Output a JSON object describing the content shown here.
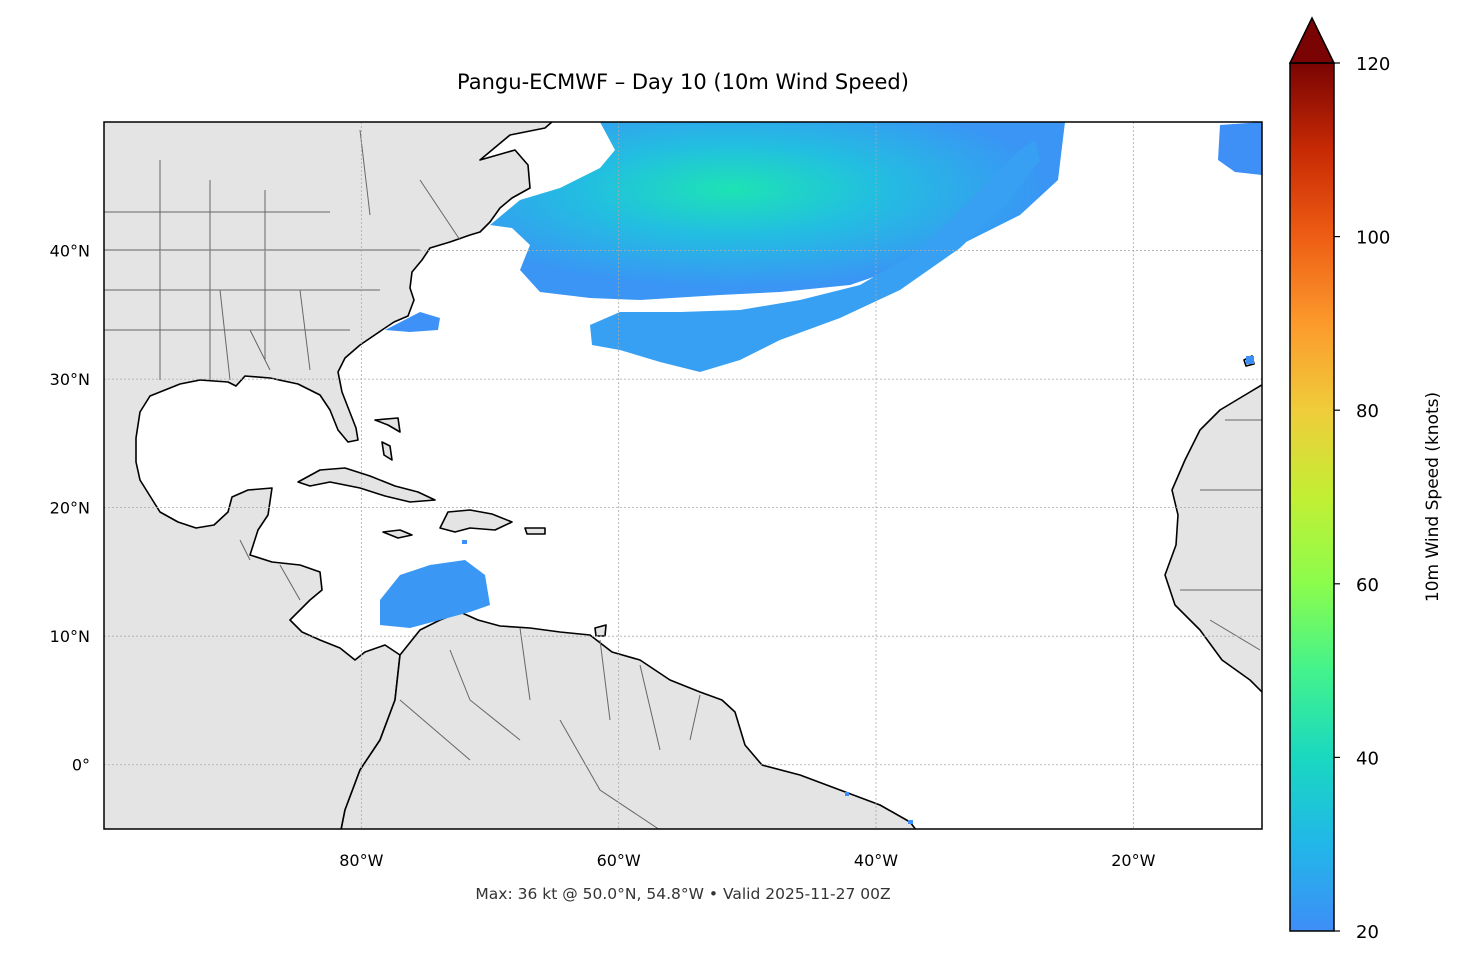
{
  "title": "Pangu-ECMWF – Day 10 (10m Wind Speed)",
  "footer": "Max: 36 kt @ 50.0°N, 54.8°W • Valid 2025-11-27 00Z",
  "map": {
    "projection": "PlateCarree",
    "lon_range": [
      -100,
      -10
    ],
    "lat_range": [
      -5,
      50
    ],
    "gridlines": true,
    "land_color": "#e4e4e4",
    "coastline_color": "#000000",
    "border_color": "#666666",
    "lon_ticks": [
      {
        "value": -80,
        "label": "80°W"
      },
      {
        "value": -60,
        "label": "60°W"
      },
      {
        "value": -40,
        "label": "40°W"
      },
      {
        "value": -20,
        "label": "20°W"
      }
    ],
    "lat_ticks": [
      {
        "value": 40,
        "label": "40°N"
      },
      {
        "value": 30,
        "label": "30°N"
      },
      {
        "value": 20,
        "label": "20°N"
      },
      {
        "value": 10,
        "label": "10°N"
      },
      {
        "value": 0,
        "label": "0°"
      }
    ]
  },
  "colorbar": {
    "label": "10m Wind Speed (knots)",
    "min": 20,
    "max": 120,
    "extend": "max",
    "ticks": [
      {
        "value": 20,
        "label": "20"
      },
      {
        "value": 40,
        "label": "40"
      },
      {
        "value": 60,
        "label": "60"
      },
      {
        "value": 80,
        "label": "80"
      },
      {
        "value": 100,
        "label": "100"
      },
      {
        "value": 120,
        "label": "120"
      }
    ],
    "colormap": "turbo",
    "extend_color": "#7a0403"
  },
  "wind_regions": [
    {
      "name": "nw-atlantic-band",
      "max_kt": 36
    },
    {
      "name": "central-atlantic-band",
      "max_kt": 26
    },
    {
      "name": "caribbean-patch",
      "max_kt": 24
    },
    {
      "name": "carolina-patch",
      "max_kt": 22
    },
    {
      "name": "ne-atlantic-patch",
      "max_kt": 22
    }
  ],
  "max_wind": {
    "value_kt": 36,
    "lat": 50.0,
    "lon": -54.8
  }
}
